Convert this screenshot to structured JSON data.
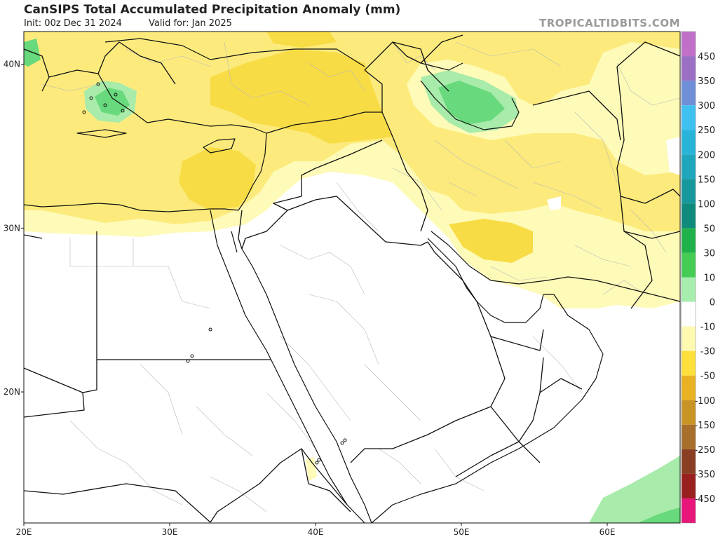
{
  "header": {
    "title": "CanSIPS Total Accumulated Precipitation Anomaly (mm)",
    "init": "Init: 00z Dec 31 2024",
    "valid": "Valid for: Jan 2025",
    "brand": "TROPICALTIDBITS.COM"
  },
  "map": {
    "lon_range": [
      20,
      65
    ],
    "lat_range": [
      12,
      42
    ],
    "lon_ticks": [
      {
        "value": 20,
        "label": "20E"
      },
      {
        "value": 30,
        "label": "30E"
      },
      {
        "value": 40,
        "label": "40E"
      },
      {
        "value": 50,
        "label": "50E"
      },
      {
        "value": 60,
        "label": "60E"
      }
    ],
    "lat_ticks": [
      {
        "value": 40,
        "label": "40N"
      },
      {
        "value": 30,
        "label": "30N"
      },
      {
        "value": 20,
        "label": "20N"
      }
    ],
    "colors": {
      "light_yellow": "#fefab8",
      "yellow": "#fceb7c",
      "gold": "#f8dc45",
      "light_green": "#a8ebaa",
      "green": "#68d97c",
      "border": "#111111",
      "province": "#b8b8b8"
    }
  },
  "colorbar": {
    "levels": [
      {
        "label": "450",
        "color": "#9b6fc4"
      },
      {
        "label": "350",
        "color": "#6f8fd8"
      },
      {
        "label": "300",
        "color": "#3fc0f0"
      },
      {
        "label": "250",
        "color": "#28b4d8"
      },
      {
        "label": "200",
        "color": "#1fa6bc"
      },
      {
        "label": "150",
        "color": "#16989c"
      },
      {
        "label": "100",
        "color": "#0f8a7c"
      },
      {
        "label": "50",
        "color": "#1fb24a"
      },
      {
        "label": "30",
        "color": "#45cc55"
      },
      {
        "label": "10",
        "color": "#a7edae"
      },
      {
        "label": "0",
        "color": "#ffffff"
      },
      {
        "label": "-10",
        "color": "#fef9b0"
      },
      {
        "label": "-30",
        "color": "#fde03c"
      },
      {
        "label": "-50",
        "color": "#e8b223"
      },
      {
        "label": "-100",
        "color": "#c99426"
      },
      {
        "label": "-150",
        "color": "#a86f2c"
      },
      {
        "label": "-250",
        "color": "#8a3e23"
      },
      {
        "label": "-350",
        "color": "#9a1f1f"
      },
      {
        "label": "-450",
        "color": "#c2154f"
      }
    ],
    "top_color": "#c070c8",
    "bottom_color": "#e8167a"
  }
}
